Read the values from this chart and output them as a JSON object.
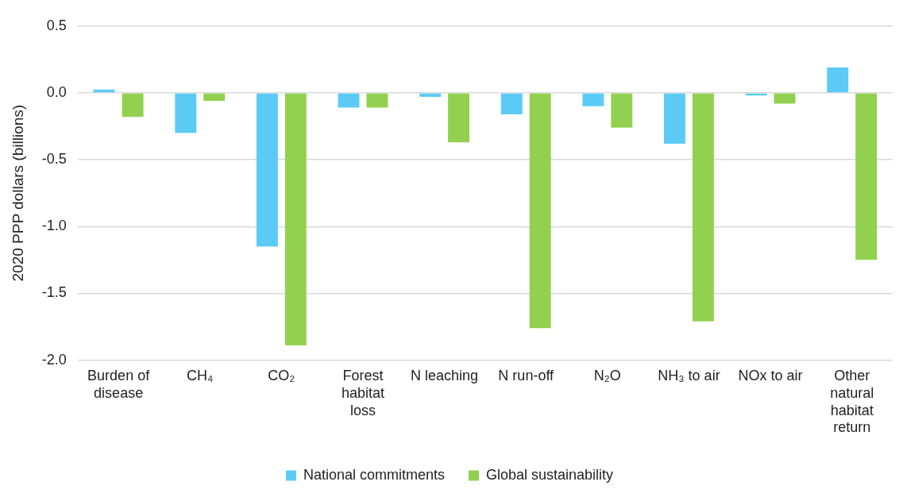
{
  "chart_data": {
    "type": "bar",
    "ylabel": "2020 PPP dollars (billions)",
    "categories": [
      "Burden of disease",
      "CH₄",
      "CO₂",
      "Forest habitat loss",
      "N leaching",
      "N run-off",
      "N₂O",
      "NH₃ to air",
      "NOx to air",
      "Other natural habitat return"
    ],
    "series": [
      {
        "name": "National commitments",
        "color": "#5bcbf5",
        "values": [
          0.025,
          -0.3,
          -1.15,
          -0.11,
          -0.03,
          -0.16,
          -0.1,
          -0.38,
          -0.02,
          0.19
        ]
      },
      {
        "name": "Global sustainability",
        "color": "#92d050",
        "values": [
          -0.18,
          -0.06,
          -1.89,
          -0.11,
          -0.37,
          -1.76,
          -0.26,
          -1.71,
          -0.08,
          -1.25
        ]
      }
    ],
    "ylim": [
      -2.0,
      0.5
    ],
    "yticks": [
      0.5,
      {
        "value": 0,
        "label": "0.0"
      },
      -0.5,
      {
        "value": -1,
        "label": "-1.0"
      },
      -1.5,
      {
        "value": -2,
        "label": "-2.0"
      }
    ],
    "grid": "y",
    "legend": "bottom"
  }
}
